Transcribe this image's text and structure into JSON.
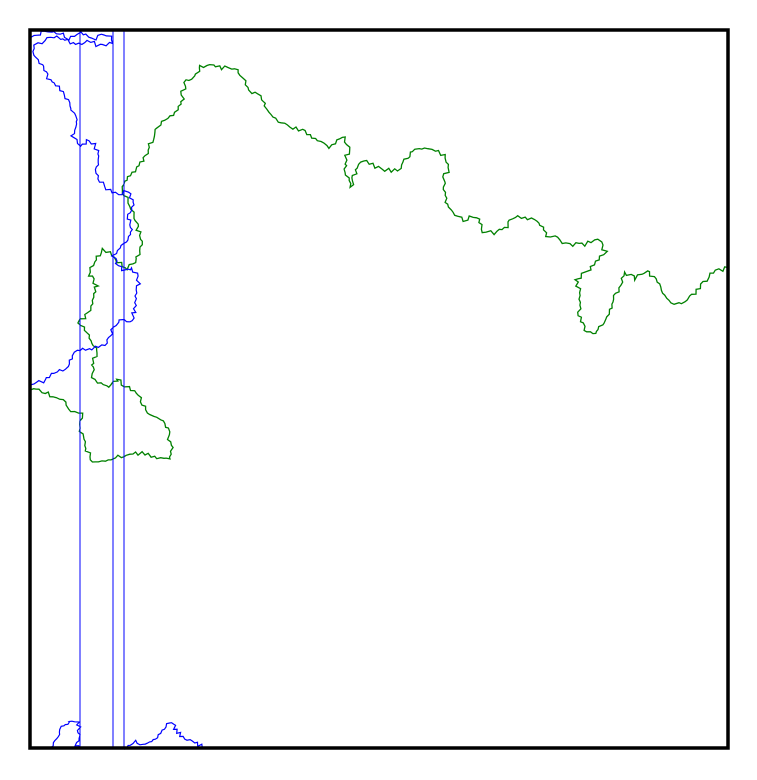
{
  "colors": {
    "background": "#ffffff",
    "frame": "#000000",
    "blue_path": "#0000ff",
    "green_path": "#008000"
  },
  "figure": {
    "frame": true,
    "paths": [
      "blue-fractal-path",
      "green-fractal-path"
    ],
    "vertical_lines": 3,
    "text": ""
  }
}
